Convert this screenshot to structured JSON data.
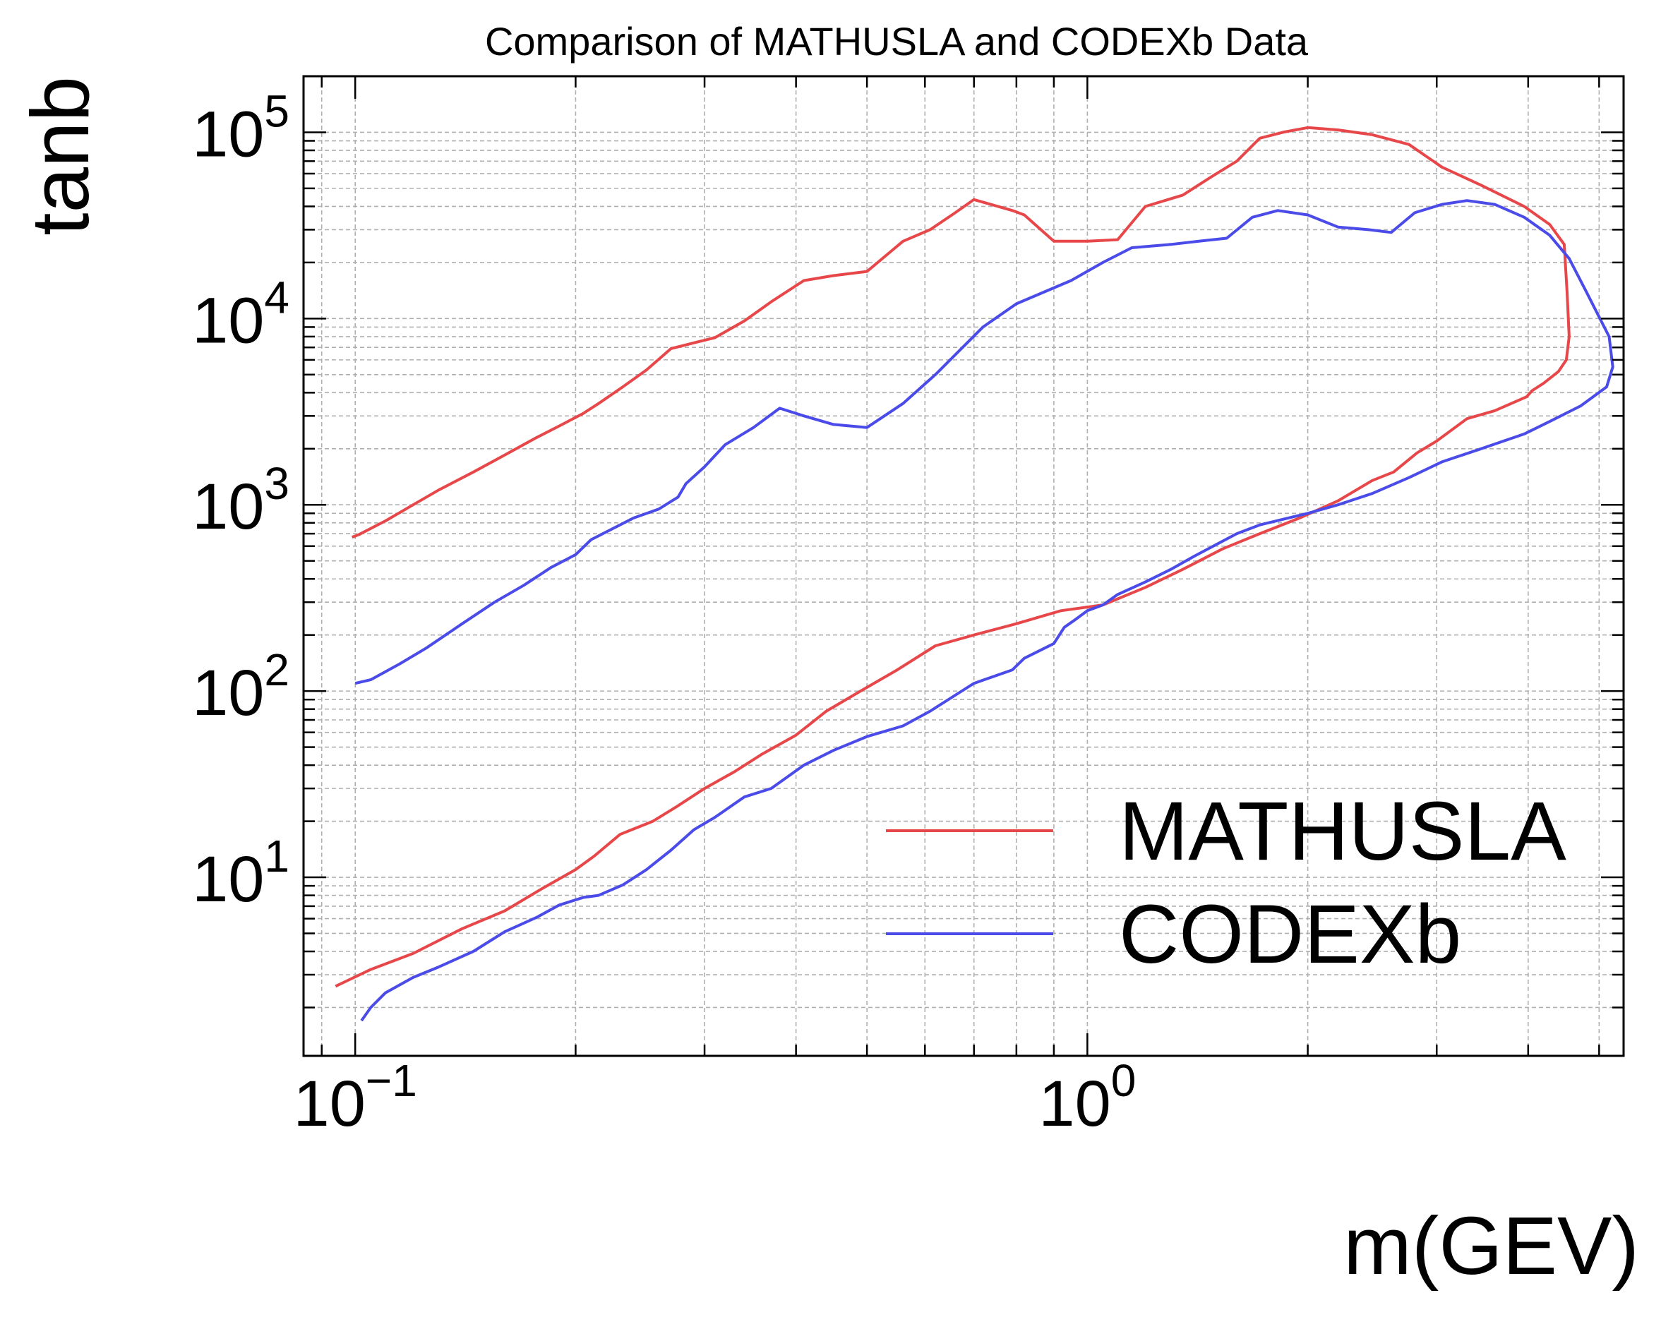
{
  "chart_data": {
    "type": "line",
    "title": "Comparison of MATHUSLA and CODEXb Data",
    "xlabel": "m(GEV)",
    "ylabel": "tanb",
    "xscale": "log",
    "yscale": "log",
    "xlim": [
      0.085,
      5.4
    ],
    "ylim": [
      1.1,
      200000
    ],
    "grid": true,
    "legend_position": "lower-right",
    "x_ticks": [
      {
        "value": 0.1,
        "base": "10",
        "exp": "−1"
      },
      {
        "value": 1,
        "base": "10",
        "exp": "0"
      }
    ],
    "y_ticks": [
      {
        "value": 10,
        "base": "10",
        "exp": "1"
      },
      {
        "value": 100,
        "base": "10",
        "exp": "2"
      },
      {
        "value": 1000,
        "base": "10",
        "exp": "3"
      },
      {
        "value": 10000,
        "base": "10",
        "exp": "4"
      },
      {
        "value": 100000,
        "base": "10",
        "exp": "5"
      }
    ],
    "series": [
      {
        "name": "MATHUSLA",
        "color": "#e8474a",
        "x": [
          0.099,
          0.101,
          0.11,
          0.12,
          0.13,
          0.145,
          0.16,
          0.177,
          0.19,
          0.205,
          0.215,
          0.232,
          0.25,
          0.27,
          0.29,
          0.31,
          0.34,
          0.37,
          0.41,
          0.45,
          0.5,
          0.56,
          0.61,
          0.66,
          0.7,
          0.79,
          0.82,
          0.9,
          1.0,
          1.1,
          1.2,
          1.35,
          1.48,
          1.6,
          1.72,
          1.85,
          2.0,
          2.2,
          2.45,
          2.75,
          3.05,
          3.45,
          3.95,
          4.28,
          4.48,
          4.52,
          4.55,
          4.51,
          4.4,
          4.2,
          4.05,
          3.98,
          3.6,
          3.3,
          3.0,
          2.82,
          2.62,
          2.45,
          2.2,
          1.95,
          1.72,
          1.53,
          1.35,
          1.2,
          1.05,
          0.92,
          0.8,
          0.7,
          0.62,
          0.55,
          0.49,
          0.44,
          0.4,
          0.36,
          0.33,
          0.3,
          0.275,
          0.255,
          0.23,
          0.212,
          0.2,
          0.18,
          0.16,
          0.14,
          0.12,
          0.105,
          0.094
        ],
        "y": [
          670,
          690,
          820,
          1000,
          1200,
          1500,
          1850,
          2300,
          2650,
          3100,
          3500,
          4300,
          5300,
          6900,
          7400,
          7900,
          9700,
          12300,
          16000,
          17000,
          17900,
          26000,
          30000,
          37000,
          43500,
          38000,
          36000,
          26000,
          26000,
          26500,
          40000,
          46000,
          58000,
          70000,
          93000,
          100000,
          106000,
          103000,
          97000,
          86000,
          65000,
          52000,
          40000,
          32000,
          25000,
          14000,
          8000,
          6000,
          5200,
          4500,
          4100,
          3800,
          3200,
          2900,
          2200,
          1900,
          1500,
          1350,
          1050,
          850,
          700,
          580,
          450,
          360,
          290,
          270,
          230,
          200,
          175,
          130,
          100,
          78,
          58,
          46,
          37,
          30,
          24,
          20,
          17,
          13,
          11,
          8.7,
          6.6,
          5.3,
          3.9,
          3.2,
          2.6
        ]
      },
      {
        "name": "CODEXb",
        "color": "#4a4be8",
        "x": [
          0.102,
          0.105,
          0.11,
          0.12,
          0.13,
          0.145,
          0.16,
          0.177,
          0.19,
          0.205,
          0.215,
          0.232,
          0.25,
          0.27,
          0.29,
          0.31,
          0.34,
          0.37,
          0.41,
          0.45,
          0.5,
          0.56,
          0.61,
          0.66,
          0.7,
          0.79,
          0.82,
          0.9,
          0.93,
          0.96,
          1.0,
          1.05,
          1.1,
          1.2,
          1.3,
          1.4,
          1.6,
          1.72,
          2.0,
          2.2,
          2.45,
          2.75,
          3.05,
          3.45,
          3.95,
          4.28,
          4.72,
          5.12,
          5.22,
          5.16,
          4.8,
          4.55,
          4.28,
          3.95,
          3.6,
          3.3,
          3.05,
          2.8,
          2.6,
          2.42,
          2.2,
          2.0,
          1.82,
          1.68,
          1.55,
          1.42,
          1.3,
          1.15,
          1.05,
          0.95,
          0.8,
          0.72,
          0.62,
          0.56,
          0.5,
          0.45,
          0.41,
          0.38,
          0.35,
          0.32,
          0.3,
          0.283,
          0.276,
          0.26,
          0.24,
          0.21,
          0.2,
          0.185,
          0.17,
          0.155,
          0.14,
          0.125,
          0.115,
          0.105,
          0.1
        ],
        "y": [
          1.7,
          2.0,
          2.4,
          2.9,
          3.3,
          4.0,
          5.1,
          6.1,
          7.1,
          7.8,
          8.0,
          9.1,
          11,
          14,
          18,
          21,
          27,
          30,
          40,
          48,
          57,
          65,
          78,
          95,
          110,
          130,
          150,
          180,
          220,
          240,
          270,
          290,
          330,
          385,
          450,
          530,
          700,
          780,
          900,
          1000,
          1150,
          1400,
          1700,
          2000,
          2400,
          2800,
          3400,
          4300,
          5500,
          8000,
          14000,
          21000,
          28000,
          35000,
          41000,
          43000,
          41000,
          37000,
          29000,
          30000,
          31000,
          36000,
          38000,
          35000,
          27000,
          26000,
          25000,
          24000,
          20000,
          16000,
          12000,
          9000,
          5000,
          3500,
          2600,
          2700,
          3000,
          3300,
          2600,
          2100,
          1600,
          1300,
          1100,
          950,
          850,
          650,
          540,
          460,
          370,
          300,
          230,
          170,
          140,
          115,
          110
        ]
      }
    ]
  }
}
